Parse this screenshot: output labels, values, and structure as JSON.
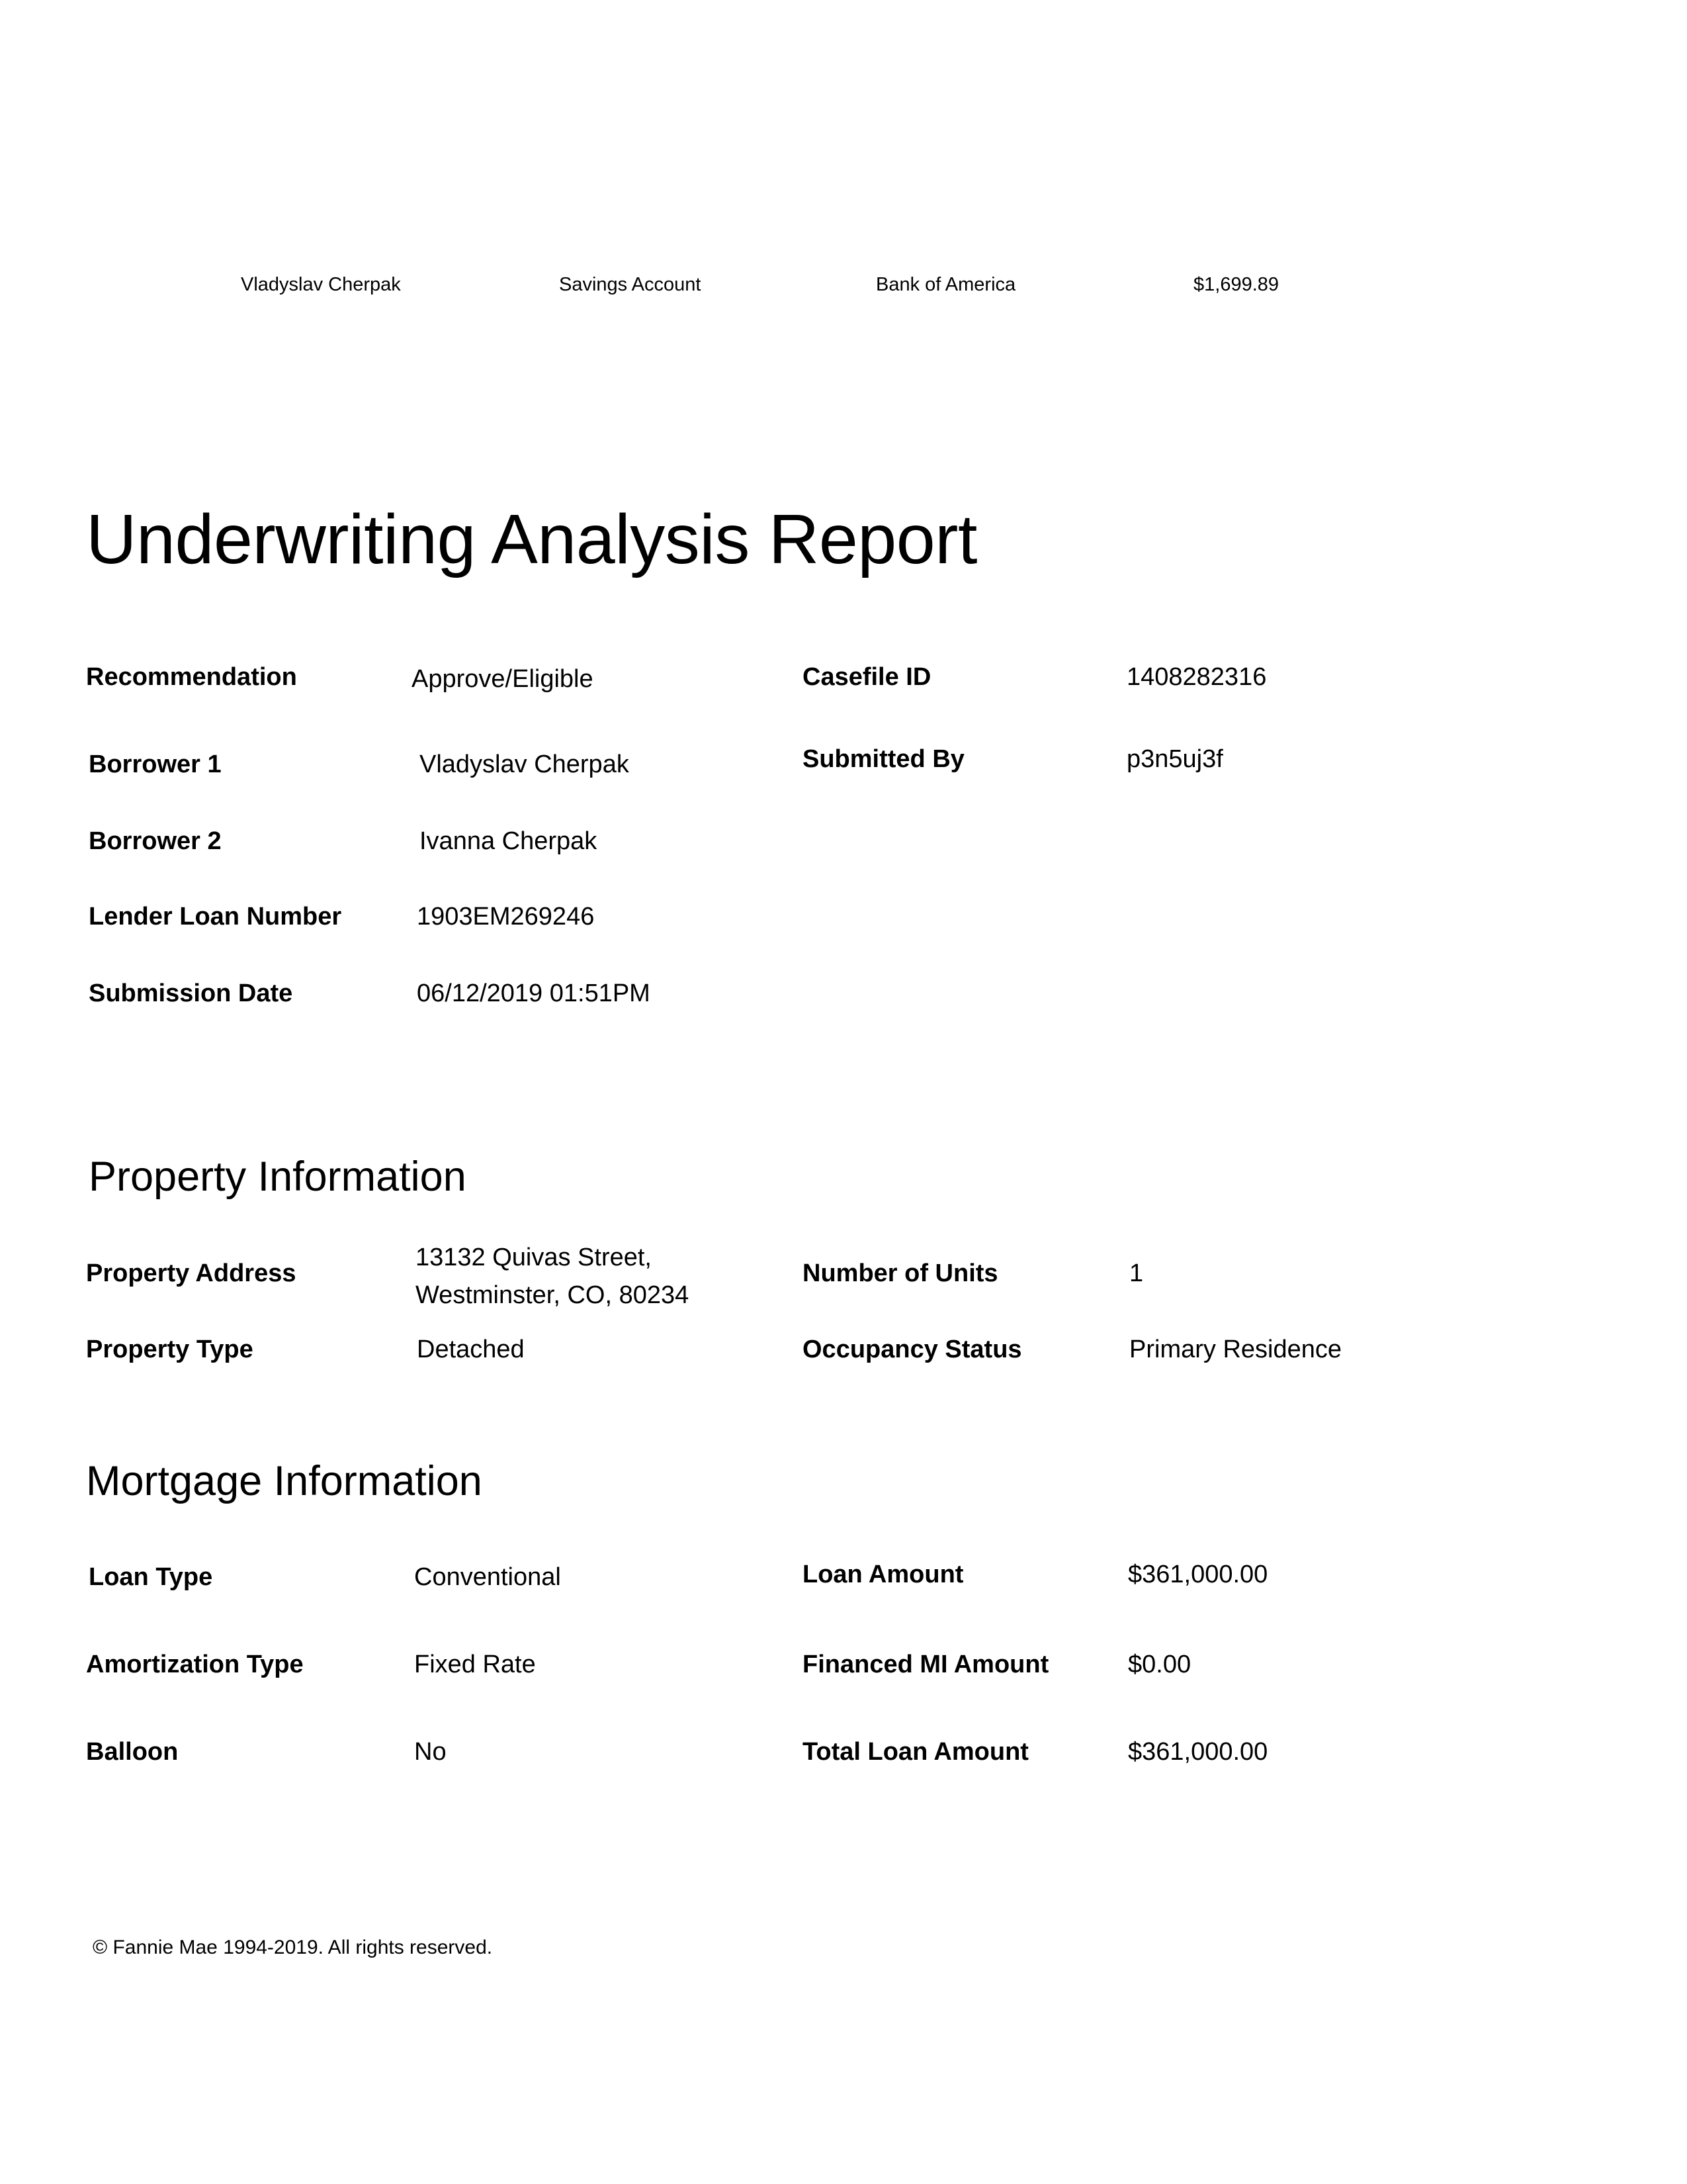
{
  "accounts_row": {
    "owner": "Vladyslav Cherpak",
    "account_type": "Savings Account",
    "institution": "Bank of America",
    "balance": "$1,699.89"
  },
  "report": {
    "title": "Underwriting Analysis Report"
  },
  "summary": {
    "recommendation_label": "Recommendation",
    "recommendation_value": "Approve/Eligible",
    "casefile_label": "Casefile ID",
    "casefile_value": "1408282316",
    "borrower1_label": "Borrower 1",
    "borrower1_value": "Vladyslav Cherpak",
    "submitted_by_label": "Submitted By",
    "submitted_by_value": "p3n5uj3f",
    "borrower2_label": "Borrower 2",
    "borrower2_value": "Ivanna Cherpak",
    "lender_loan_label": "Lender Loan Number",
    "lender_loan_value": "1903EM269246",
    "submission_date_label": "Submission Date",
    "submission_date_value": "06/12/2019 01:51PM"
  },
  "property": {
    "section_title": "Property Information",
    "address_label": "Property Address",
    "address_line1": "13132 Quivas Street,",
    "address_line2": "Westminster, CO, 80234",
    "units_label": "Number of Units",
    "units_value": "1",
    "type_label": "Property Type",
    "type_value": "Detached",
    "occupancy_label": "Occupancy Status",
    "occupancy_value": "Primary Residence"
  },
  "mortgage": {
    "section_title": "Mortgage Information",
    "loan_type_label": "Loan Type",
    "loan_type_value": "Conventional",
    "loan_amount_label": "Loan Amount",
    "loan_amount_value": "$361,000.00",
    "amortization_label": "Amortization Type",
    "amortization_value": "Fixed Rate",
    "financed_mi_label": "Financed MI Amount",
    "financed_mi_value": "$0.00",
    "balloon_label": "Balloon",
    "balloon_value": "No",
    "total_loan_label": "Total Loan Amount",
    "total_loan_value": "$361,000.00"
  },
  "footer": {
    "copyright": "© Fannie Mae 1994-2019. All rights reserved."
  }
}
